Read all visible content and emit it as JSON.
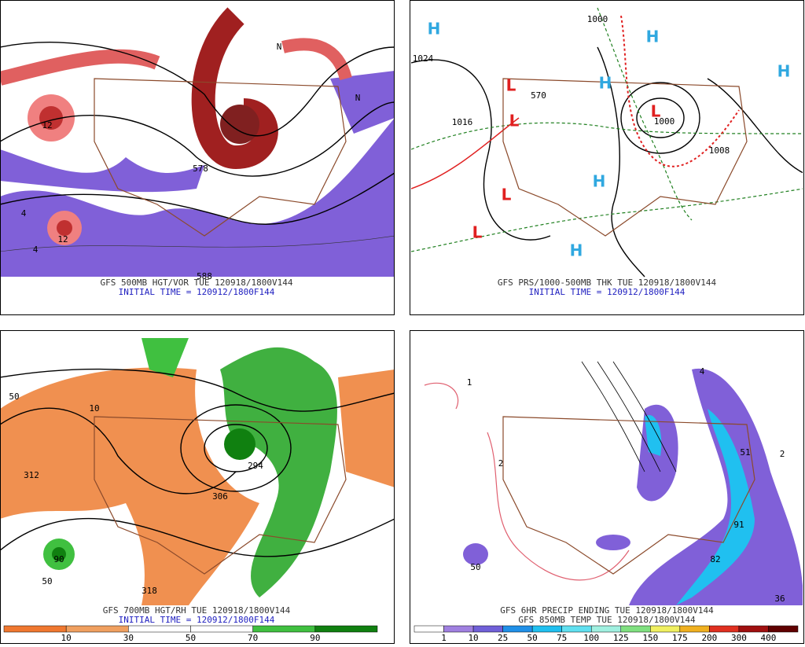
{
  "panels": [
    {
      "caption": "GFS 500MB HGT/VOR TUE 120918/1800V144",
      "subcaption": "INITIAL TIME = 120912/1800F144",
      "labels": [
        "12",
        "12",
        "578",
        "588",
        "4",
        "4",
        "N",
        "N"
      ]
    },
    {
      "caption": "GFS PRS/1000-500MB THK TUE 120918/1800V144",
      "subcaption": "INITIAL TIME = 120912/1800F144",
      "labels": [
        "H",
        "H",
        "H",
        "H",
        "H",
        "H",
        "L",
        "L",
        "L",
        "L",
        "L",
        "1024",
        "1016",
        "1000",
        "1008",
        "570",
        "1000"
      ]
    },
    {
      "caption": "GFS 700MB HGT/RH TUE 120918/1800V144",
      "subcaption": "INITIAL TIME = 120912/1800F144",
      "labels": [
        "312",
        "90",
        "50",
        "50",
        "10",
        "318",
        "294",
        "306"
      ]
    },
    {
      "caption": "GFS 6HR PRECIP ENDING TUE 120918/1800V144",
      "subcaption": "GFS 850MB TEMP TUE 120918/1800V144",
      "labels": [
        "1",
        "2",
        "50",
        "82",
        "91",
        "51",
        "36",
        "2",
        "4"
      ]
    }
  ],
  "rh_legend": {
    "labels": [
      "10",
      "30",
      "50",
      "70",
      "90"
    ],
    "colors": [
      "#f07830",
      "#f0a060",
      "#ffffff",
      "#ffffff",
      "#40c040",
      "#108010"
    ]
  },
  "precip_legend": {
    "labels": [
      "1",
      "10",
      "25",
      "50",
      "75",
      "100",
      "125",
      "150",
      "175",
      "200",
      "300",
      "400"
    ],
    "colors": [
      "#ffffff",
      "#a080e0",
      "#7060d8",
      "#2090e8",
      "#20c0f0",
      "#60e0f0",
      "#a0f0e0",
      "#80e080",
      "#f0f060",
      "#f0b020",
      "#e03020",
      "#a01010",
      "#600000"
    ]
  }
}
